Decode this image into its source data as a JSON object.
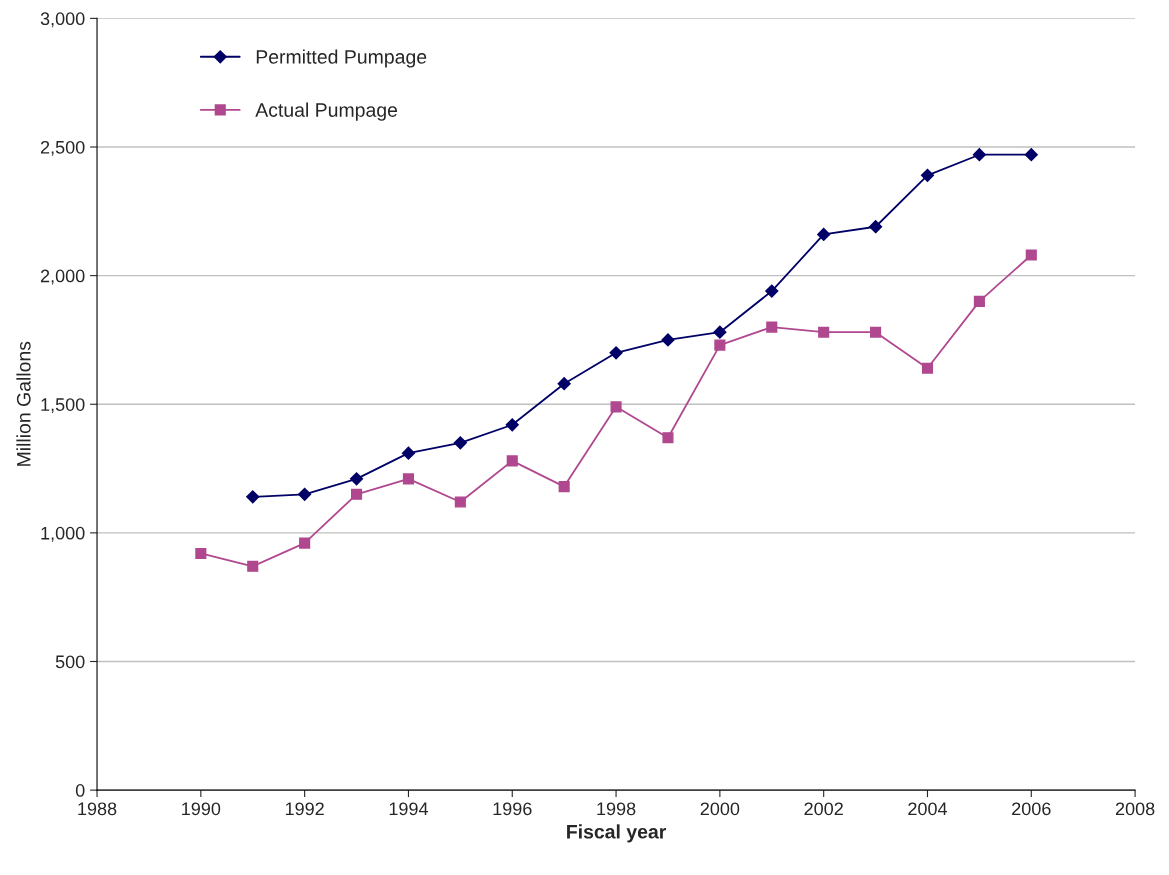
{
  "chart_data": {
    "type": "line",
    "xlabel": "Fiscal year",
    "ylabel": "Million Gallons",
    "x": [
      1990,
      1991,
      1992,
      1993,
      1994,
      1995,
      1996,
      1997,
      1998,
      1999,
      2000,
      2001,
      2002,
      2003,
      2004,
      2005,
      2006
    ],
    "series": [
      {
        "name": "Permitted Pumpage",
        "color": "#000066",
        "marker": "diamond",
        "values": [
          null,
          1140,
          1150,
          1210,
          1310,
          1350,
          1420,
          1580,
          1700,
          1750,
          1780,
          1940,
          2160,
          2190,
          2390,
          2470,
          2470
        ]
      },
      {
        "name": "Actual Pumpage",
        "color": "#b0488f",
        "marker": "square",
        "values": [
          920,
          870,
          960,
          1150,
          1210,
          1120,
          1280,
          1180,
          1490,
          1370,
          1730,
          1800,
          1780,
          1780,
          1640,
          1900,
          2080
        ]
      }
    ],
    "xlim": [
      1988,
      2008
    ],
    "xticks": [
      1988,
      1990,
      1992,
      1994,
      1996,
      1998,
      2000,
      2002,
      2004,
      2006,
      2008
    ],
    "ylim": [
      0,
      3000
    ],
    "yticks": [
      {
        "value": 0,
        "label": "0"
      },
      {
        "value": 500,
        "label": "500"
      },
      {
        "value": 1000,
        "label": "1,000"
      },
      {
        "value": 1500,
        "label": "1,500"
      },
      {
        "value": 2000,
        "label": "2,000"
      },
      {
        "value": 2500,
        "label": "2,500"
      },
      {
        "value": 3000,
        "label": "3,000"
      }
    ],
    "grid": "y",
    "legend": "top left",
    "line_style": "solid"
  }
}
